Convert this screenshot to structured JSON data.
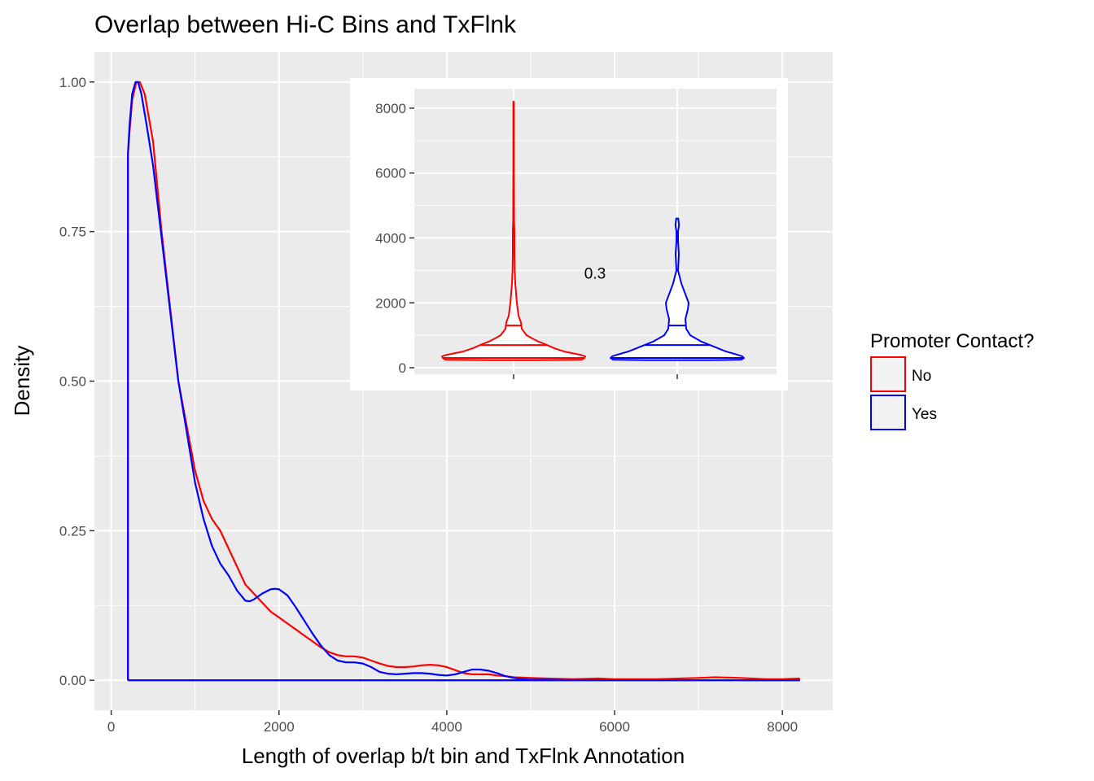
{
  "chart_data": [
    {
      "type": "line",
      "title": "Overlap between Hi-C Bins and TxFlnk",
      "xlabel": "Length of overlap b/t bin and TxFlnk Annotation",
      "ylabel": "Density",
      "xlim": [
        -200,
        8600
      ],
      "ylim": [
        -0.05,
        1.05
      ],
      "xticks": [
        0,
        2000,
        4000,
        6000,
        8000
      ],
      "xtick_labels": [
        "0",
        "2000",
        "4000",
        "6000",
        "8000"
      ],
      "yticks": [
        0,
        0.25,
        0.5,
        0.75,
        1.0
      ],
      "ytick_labels": [
        "0.00",
        "0.25",
        "0.50",
        "0.75",
        "1.00"
      ],
      "grid": true,
      "legend": {
        "title": "Promoter Contact?",
        "placement": "right",
        "entries": [
          {
            "label": "No",
            "color": "#ff0000"
          },
          {
            "label": "Yes",
            "color": "#0000ff"
          }
        ]
      },
      "series": [
        {
          "name": "No",
          "color": "#ff0000",
          "x": [
            200,
            200,
            220,
            250,
            300,
            340,
            400,
            500,
            600,
            800,
            1000,
            1100,
            1200,
            1300,
            1400,
            1500,
            1600,
            1700,
            1800,
            1900,
            2000,
            2100,
            2200,
            2300,
            2400,
            2500,
            2600,
            2700,
            2800,
            2900,
            3000,
            3100,
            3200,
            3300,
            3400,
            3500,
            3600,
            3700,
            3800,
            3900,
            4000,
            4100,
            4200,
            4300,
            4400,
            4500,
            4600,
            4700,
            4800,
            5000,
            5200,
            5500,
            5800,
            6000,
            6500,
            7000,
            7200,
            7500,
            7800,
            8000,
            8200,
            8200,
            200
          ],
          "y": [
            0,
            0.88,
            0.92,
            0.97,
            1.0,
            1.0,
            0.98,
            0.9,
            0.75,
            0.5,
            0.35,
            0.3,
            0.27,
            0.25,
            0.22,
            0.19,
            0.16,
            0.145,
            0.13,
            0.115,
            0.105,
            0.095,
            0.085,
            0.075,
            0.065,
            0.055,
            0.047,
            0.042,
            0.04,
            0.04,
            0.038,
            0.033,
            0.028,
            0.024,
            0.022,
            0.022,
            0.023,
            0.025,
            0.026,
            0.025,
            0.022,
            0.017,
            0.012,
            0.01,
            0.01,
            0.01,
            0.008,
            0.007,
            0.005,
            0.004,
            0.003,
            0.002,
            0.003,
            0.002,
            0.002,
            0.004,
            0.005,
            0.004,
            0.002,
            0.002,
            0.003,
            0,
            0
          ]
        },
        {
          "name": "Yes",
          "color": "#0000ff",
          "x": [
            200,
            200,
            220,
            250,
            290,
            320,
            360,
            420,
            500,
            600,
            800,
            1000,
            1100,
            1200,
            1300,
            1400,
            1500,
            1600,
            1650,
            1700,
            1800,
            1900,
            1950,
            2000,
            2100,
            2200,
            2300,
            2400,
            2500,
            2600,
            2700,
            2800,
            2900,
            3000,
            3100,
            3200,
            3300,
            3400,
            3500,
            3600,
            3700,
            3800,
            3900,
            4000,
            4100,
            4200,
            4300,
            4400,
            4500,
            4600,
            4700,
            4800,
            4900,
            5000,
            5200,
            5400,
            5600,
            5800,
            6000,
            6500,
            7000,
            7500,
            8000,
            8200,
            8200,
            200
          ],
          "y": [
            0,
            0.88,
            0.93,
            0.98,
            1.0,
            1.0,
            0.98,
            0.93,
            0.86,
            0.74,
            0.5,
            0.33,
            0.27,
            0.225,
            0.195,
            0.175,
            0.15,
            0.133,
            0.132,
            0.135,
            0.145,
            0.152,
            0.153,
            0.152,
            0.142,
            0.122,
            0.1,
            0.078,
            0.058,
            0.042,
            0.033,
            0.03,
            0.03,
            0.028,
            0.022,
            0.014,
            0.011,
            0.01,
            0.011,
            0.012,
            0.012,
            0.011,
            0.009,
            0.008,
            0.01,
            0.014,
            0.018,
            0.018,
            0.016,
            0.012,
            0.007,
            0.004,
            0.002,
            0.001,
            0.001,
            0.0005,
            0.0003,
            0.0002,
            0.0002,
            0.0001,
            0.0001,
            0.0001,
            0.0001,
            0.0001,
            0,
            0
          ]
        }
      ]
    },
    {
      "type": "violin",
      "inset": true,
      "ylim": [
        -200,
        8600
      ],
      "yticks": [
        0,
        2000,
        4000,
        6000,
        8000
      ],
      "ytick_labels": [
        "0",
        "2000",
        "4000",
        "6000",
        "8000"
      ],
      "grid": true,
      "annotation": "0.3",
      "annotation_value": 2900,
      "series": [
        {
          "name": "No",
          "color": "#ff0000",
          "quantiles": [
            300,
            700,
            1300
          ],
          "profile": [
            [
              230,
              0.3
            ],
            [
              250,
              0.84
            ],
            [
              300,
              0.87
            ],
            [
              350,
              0.88
            ],
            [
              400,
              0.82
            ],
            [
              500,
              0.62
            ],
            [
              600,
              0.5
            ],
            [
              700,
              0.41
            ],
            [
              800,
              0.31
            ],
            [
              900,
              0.23
            ],
            [
              1000,
              0.16
            ],
            [
              1200,
              0.1
            ],
            [
              1400,
              0.09
            ],
            [
              1600,
              0.06
            ],
            [
              1800,
              0.05
            ],
            [
              2000,
              0.04
            ],
            [
              2300,
              0.03
            ],
            [
              2600,
              0.02
            ],
            [
              3000,
              0.013
            ],
            [
              3500,
              0.01
            ],
            [
              4000,
              0.01
            ],
            [
              4200,
              0.01
            ],
            [
              4500,
              0.006
            ],
            [
              5000,
              0.005
            ],
            [
              6000,
              0.004
            ],
            [
              7000,
              0.004
            ],
            [
              8000,
              0.004
            ],
            [
              8200,
              0.003
            ]
          ]
        },
        {
          "name": "Yes",
          "color": "#0000ff",
          "quantiles": [
            300,
            700,
            1300
          ],
          "profile": [
            [
              230,
              0.38
            ],
            [
              250,
              0.79
            ],
            [
              300,
              0.82
            ],
            [
              350,
              0.8
            ],
            [
              400,
              0.74
            ],
            [
              500,
              0.6
            ],
            [
              600,
              0.5
            ],
            [
              700,
              0.4
            ],
            [
              800,
              0.3
            ],
            [
              1000,
              0.16
            ],
            [
              1200,
              0.11
            ],
            [
              1500,
              0.1
            ],
            [
              1800,
              0.13
            ],
            [
              2000,
              0.14
            ],
            [
              2200,
              0.11
            ],
            [
              2400,
              0.08
            ],
            [
              2600,
              0.05
            ],
            [
              3000,
              0.01
            ],
            [
              3500,
              0.02
            ],
            [
              3900,
              0.01
            ],
            [
              4200,
              0.01
            ],
            [
              4400,
              0.022
            ],
            [
              4600,
              0.012
            ]
          ]
        }
      ]
    }
  ]
}
